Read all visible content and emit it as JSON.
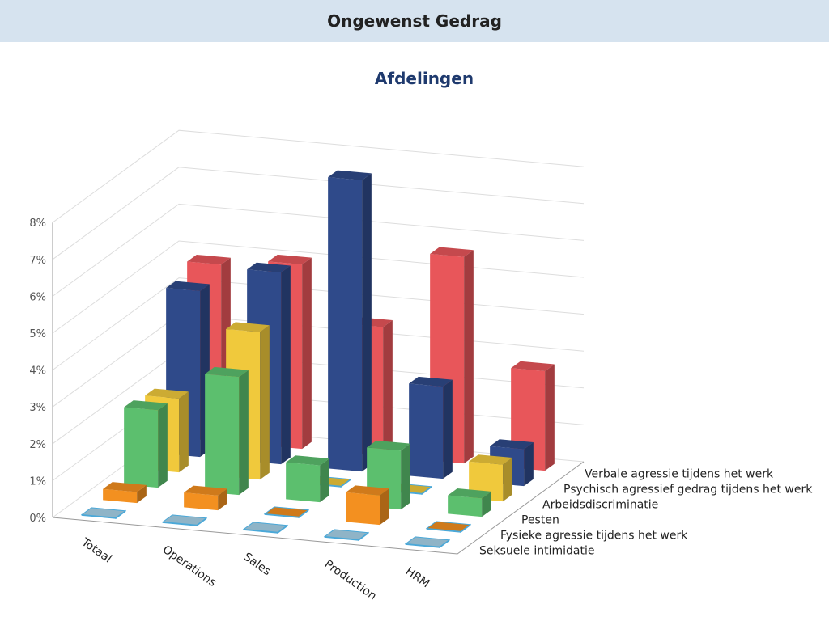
{
  "header": {
    "title": "Ongewenst Gedrag"
  },
  "chart_data": {
    "type": "bar3d",
    "title": "Afdelingen",
    "categories": [
      "Totaal",
      "Operations",
      "Sales",
      "Production",
      "HRM"
    ],
    "ylim": [
      0,
      8
    ],
    "yticks": [
      "0%",
      "1%",
      "2%",
      "3%",
      "4%",
      "5%",
      "6%",
      "7%",
      "8%"
    ],
    "grid": true,
    "series": [
      {
        "name": "Seksuele intimidatie",
        "color": "#a8d4ea",
        "values": [
          0,
          0,
          0,
          0,
          0
        ]
      },
      {
        "name": "Fysieke agressie tijdens het werk",
        "color": "#f39020",
        "values": [
          0.3,
          0.4,
          0,
          0.8,
          0
        ]
      },
      {
        "name": "Pesten",
        "color": "#5cbf6e",
        "values": [
          2.1,
          3.2,
          1.0,
          1.6,
          0.5
        ]
      },
      {
        "name": "Arbeidsdiscriminatie",
        "color": "#f0c93c",
        "values": [
          2.0,
          4.0,
          0,
          0,
          1.0
        ]
      },
      {
        "name": "Psychisch agressief gedrag tijdens het werk",
        "color": "#2f4a8a",
        "values": [
          4.5,
          5.2,
          7.9,
          2.5,
          1.0
        ]
      },
      {
        "name": "Verbale agressie tijdens het werk",
        "color": "#e8565a",
        "values": [
          4.8,
          5.0,
          3.5,
          5.6,
          2.7
        ]
      }
    ]
  }
}
